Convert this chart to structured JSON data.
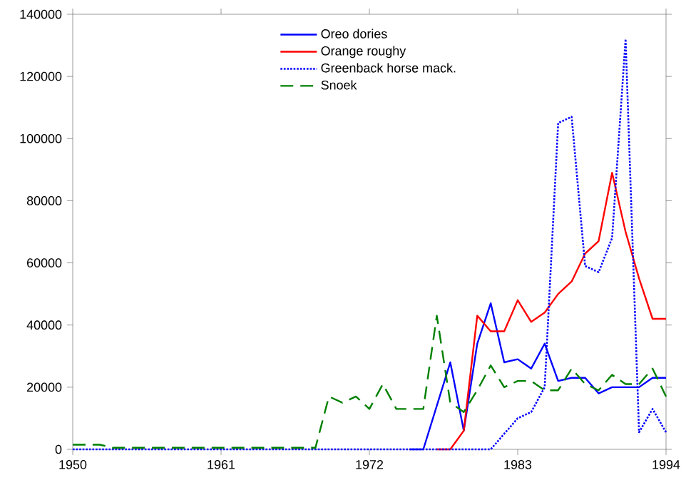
{
  "chart_data": {
    "type": "line",
    "xlim": [
      1950,
      1994
    ],
    "ylim": [
      0,
      140000
    ],
    "xticks": [
      1950,
      1961,
      1972,
      1983,
      1994
    ],
    "yticks": [
      0,
      20000,
      40000,
      60000,
      80000,
      100000,
      120000,
      140000
    ],
    "legend": "top",
    "grid": false,
    "series": [
      {
        "name": "Oreo dories",
        "color": "#0000ff",
        "line_style": "solid",
        "x": [
          1975,
          1976,
          1977,
          1978,
          1979,
          1980,
          1981,
          1982,
          1983,
          1984,
          1985,
          1986,
          1987,
          1988,
          1989,
          1990,
          1991,
          1992,
          1993,
          1994
        ],
        "values": [
          0,
          0,
          14000,
          28000,
          6000,
          34000,
          47000,
          28000,
          29000,
          26000,
          34000,
          22000,
          23000,
          23000,
          18000,
          20000,
          20000,
          20000,
          23000,
          23000
        ]
      },
      {
        "name": "Orange roughy",
        "color": "#ff0000",
        "line_style": "solid",
        "x": [
          1977,
          1978,
          1979,
          1980,
          1981,
          1982,
          1983,
          1984,
          1985,
          1986,
          1987,
          1988,
          1989,
          1990,
          1991,
          1992,
          1993,
          1994
        ],
        "values": [
          0,
          0,
          6000,
          43000,
          38000,
          38000,
          48000,
          41000,
          44000,
          50000,
          54000,
          63000,
          67000,
          89000,
          70000,
          55000,
          42000,
          42000
        ]
      },
      {
        "name": "Greenback horse mack.",
        "color": "#0000ff",
        "line_style": "dotted",
        "x": [
          1950,
          1955,
          1960,
          1965,
          1970,
          1975,
          1981,
          1982,
          1983,
          1984,
          1985,
          1986,
          1987,
          1988,
          1989,
          1990,
          1991,
          1992,
          1993,
          1994
        ],
        "values": [
          0,
          0,
          0,
          0,
          0,
          0,
          0,
          5000,
          10000,
          12000,
          20000,
          105000,
          107000,
          59000,
          57000,
          68000,
          132000,
          5500,
          13000,
          5500
        ]
      },
      {
        "name": "Snoek",
        "color": "#008000",
        "line_style": "dashed",
        "x": [
          1950,
          1951,
          1952,
          1953,
          1956,
          1960,
          1964,
          1967,
          1968,
          1969,
          1970,
          1971,
          1972,
          1973,
          1974,
          1975,
          1976,
          1977,
          1978,
          1979,
          1980,
          1981,
          1982,
          1983,
          1984,
          1985,
          1986,
          1987,
          1988,
          1989,
          1990,
          1991,
          1992,
          1993,
          1994
        ],
        "values": [
          1500,
          1500,
          1500,
          500,
          500,
          500,
          500,
          500,
          500,
          17000,
          15000,
          17000,
          13000,
          21000,
          13000,
          13000,
          13000,
          43000,
          15000,
          12000,
          19000,
          27000,
          20000,
          22000,
          22000,
          19000,
          19000,
          26000,
          21000,
          19000,
          24000,
          21000,
          21000,
          26000,
          17000
        ]
      }
    ]
  }
}
